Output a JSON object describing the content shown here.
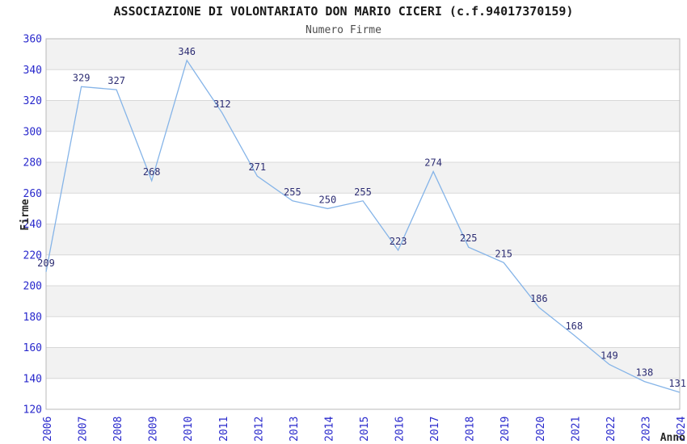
{
  "chart_data": {
    "type": "line",
    "title": "ASSOCIAZIONE DI VOLONTARIATO DON MARIO CICERI (c.f.94017370159)",
    "subtitle": "Numero Firme",
    "xlabel": "Anno",
    "ylabel": "Firme",
    "categories": [
      "2006",
      "2007",
      "2008",
      "2009",
      "2010",
      "2011",
      "2012",
      "2013",
      "2014",
      "2015",
      "2016",
      "2017",
      "2018",
      "2019",
      "2020",
      "2021",
      "2022",
      "2023",
      "2024"
    ],
    "values": [
      209,
      329,
      327,
      268,
      346,
      312,
      271,
      255,
      250,
      255,
      223,
      274,
      225,
      215,
      186,
      168,
      149,
      138,
      131
    ],
    "ylim": [
      120,
      360
    ],
    "ytick_step": 20,
    "grid": "horizontal",
    "banded_background": true,
    "legend": "none",
    "colors": {
      "line": "#85b4e8",
      "data_label": "#2d2d73",
      "axis_tick_label": "#2828cc",
      "title": "#1a1a1a",
      "subtitle": "#4d4d4d",
      "axis_title": "#262626",
      "band": "#f2f2f2",
      "gridline": "#d8d8d8",
      "plot_border": "#b8b8b8",
      "background": "#ffffff"
    }
  }
}
